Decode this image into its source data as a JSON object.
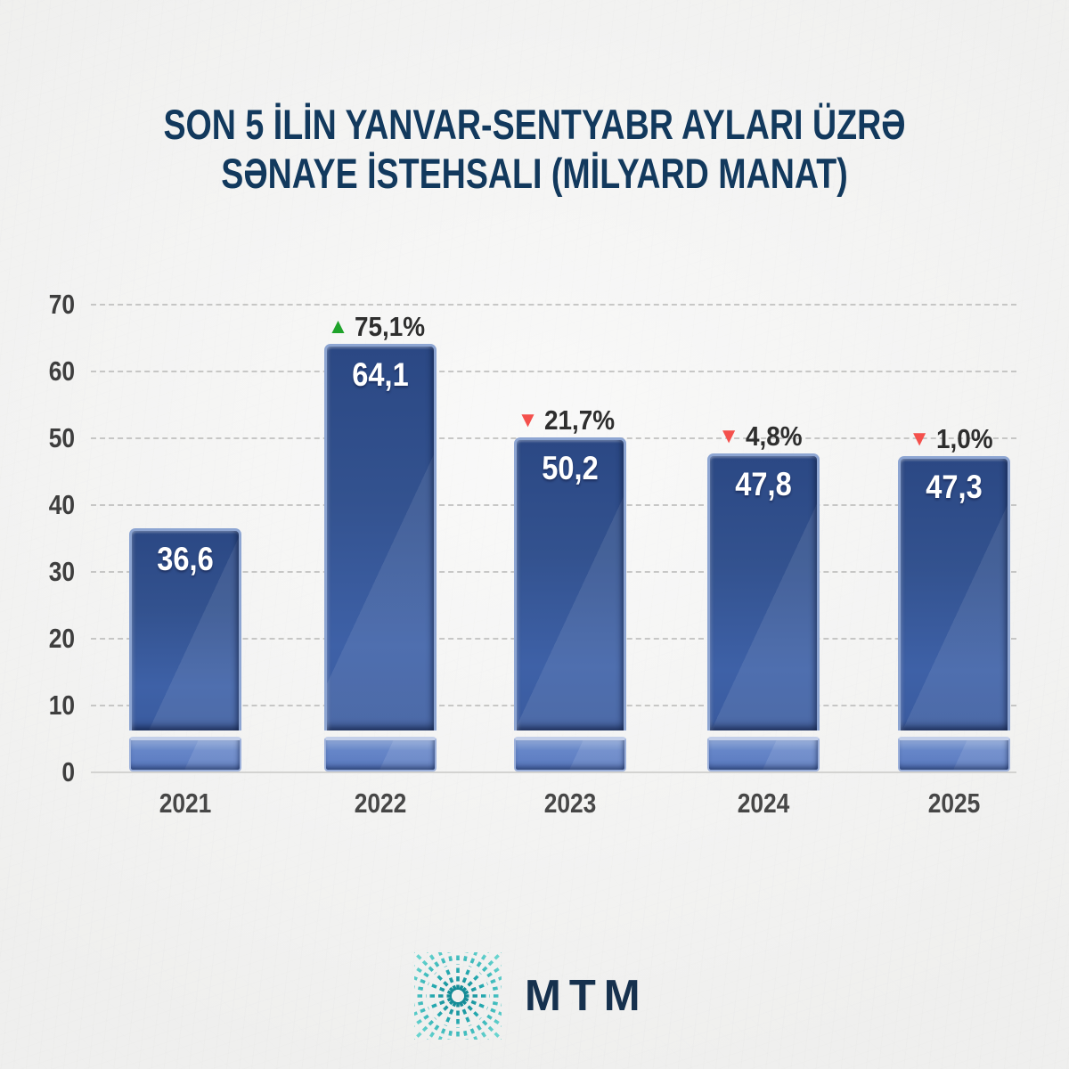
{
  "title": {
    "line1": "SON 5 İLİN YANVAR-SENTYABR AYLARI ÜZRƏ",
    "line2": "SƏNAYE İSTEHSALI (MİLYARD MANAT)"
  },
  "chart_data": {
    "type": "bar",
    "title": "SON 5 İLİN YANVAR-SENTYABR AYLARI ÜZRƏ SƏNAYE İSTEHSALI (MİLYARD MANAT)",
    "categories": [
      "2021",
      "2022",
      "2023",
      "2024",
      "2025"
    ],
    "values": [
      36.6,
      64.1,
      50.2,
      47.8,
      47.3
    ],
    "value_labels": [
      "36,6",
      "64,1",
      "50,2",
      "47,8",
      "47,3"
    ],
    "change_labels": [
      null,
      "75,1%",
      "21,7%",
      "4,8%",
      "1,0%"
    ],
    "change_directions": [
      null,
      "up",
      "down",
      "down",
      "down"
    ],
    "ylim": [
      0,
      70
    ],
    "yticks": [
      0,
      10,
      20,
      30,
      40,
      50,
      60,
      70
    ],
    "xlabel": "",
    "ylabel": "",
    "grid": "horizontal-dashed",
    "legend": "none",
    "colors": {
      "bar": "#33528f",
      "bar_base": "#5a79bf",
      "bar_bevel": "#8da5d2",
      "up_triangle": "#1fa32b",
      "down_triangle": "#f4504c",
      "title_text": "#12395d",
      "axis_text": "#3e3e3e",
      "value_text": "#ffffff",
      "logo_teal": "#27acb2",
      "logo_navy": "#16314e",
      "background": "#f2f2f1"
    }
  },
  "icons": {
    "up": "▲",
    "down": "▼"
  },
  "logo": {
    "text": "MTM",
    "mark": "teal-starburst"
  }
}
